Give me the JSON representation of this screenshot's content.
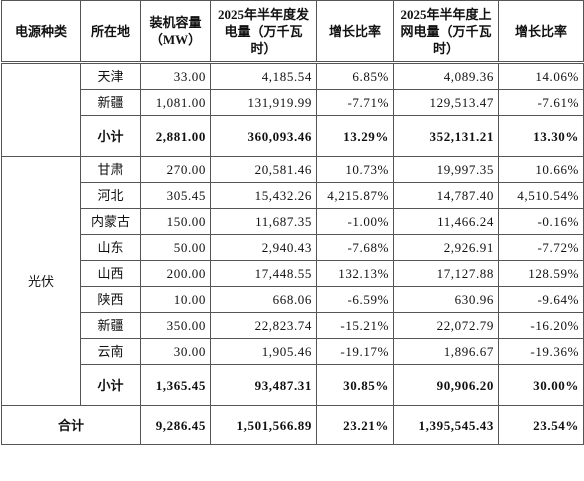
{
  "table": {
    "header": [
      "电源种类",
      "所在地",
      "装机容量（MW）",
      "2025年半年度发电量（万千瓦时）",
      "增长比率",
      "2025年半年度上网电量（万千瓦时）",
      "增长比率"
    ],
    "groups": [
      {
        "rows": [
          [
            "天津",
            "33.00",
            "4,185.54",
            "6.85%",
            "4,089.36",
            "14.06%"
          ],
          [
            "新疆",
            "1,081.00",
            "131,919.99",
            "-7.71%",
            "129,513.47",
            "-7.61%"
          ]
        ],
        "subtotal": [
          "小计",
          "2,881.00",
          "360,093.46",
          "13.29%",
          "352,131.21",
          "13.30%"
        ]
      },
      {
        "type": "光伏",
        "rows": [
          [
            "甘肃",
            "270.00",
            "20,581.46",
            "10.73%",
            "19,997.35",
            "10.66%"
          ],
          [
            "河北",
            "305.45",
            "15,432.26",
            "4,215.87%",
            "14,787.40",
            "4,510.54%"
          ],
          [
            "内蒙古",
            "150.00",
            "11,687.35",
            "-1.00%",
            "11,466.24",
            "-0.16%"
          ],
          [
            "山东",
            "50.00",
            "2,940.43",
            "-7.68%",
            "2,926.91",
            "-7.72%"
          ],
          [
            "山西",
            "200.00",
            "17,448.55",
            "132.13%",
            "17,127.88",
            "128.59%"
          ],
          [
            "陕西",
            "10.00",
            "668.06",
            "-6.59%",
            "630.96",
            "-9.64%"
          ],
          [
            "新疆",
            "350.00",
            "22,823.74",
            "-15.21%",
            "22,072.79",
            "-16.20%"
          ],
          [
            "云南",
            "30.00",
            "1,905.46",
            "-19.17%",
            "1,896.67",
            "-19.36%"
          ]
        ],
        "subtotal": [
          "小计",
          "1,365.45",
          "93,487.31",
          "30.85%",
          "90,906.20",
          "30.00%"
        ]
      }
    ],
    "total": [
      "合计",
      "9,286.45",
      "1,501,566.89",
      "23.21%",
      "1,395,545.43",
      "23.54%"
    ]
  }
}
